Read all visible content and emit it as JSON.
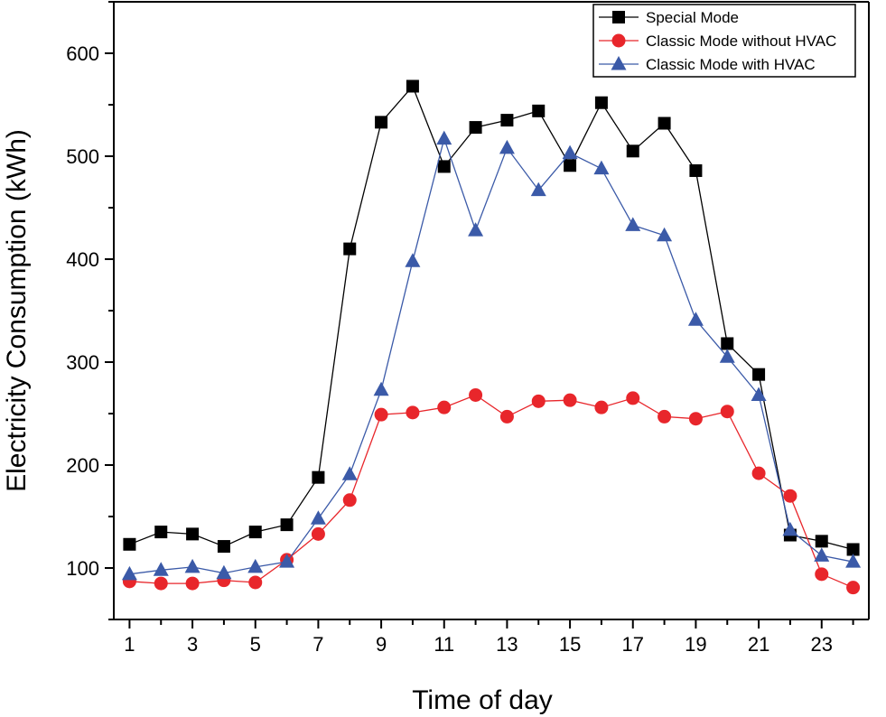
{
  "chart_data": {
    "type": "line",
    "title": "",
    "xlabel": "Time of day",
    "ylabel": "Electricity Consumption (kWh)",
    "xlim": [
      0.5,
      24.5
    ],
    "ylim": [
      50,
      650
    ],
    "x_ticks": [
      1,
      3,
      5,
      7,
      9,
      11,
      13,
      15,
      17,
      19,
      21,
      23
    ],
    "y_ticks": [
      100,
      200,
      300,
      400,
      500,
      600
    ],
    "grid": false,
    "legend_position": "top-right",
    "x": [
      1,
      2,
      3,
      4,
      5,
      6,
      7,
      8,
      9,
      10,
      11,
      12,
      13,
      14,
      15,
      16,
      17,
      18,
      19,
      20,
      21,
      22,
      23,
      24
    ],
    "series": [
      {
        "name": "Special Mode",
        "color": "#000000",
        "marker": "square",
        "values": [
          123,
          135,
          133,
          121,
          135,
          142,
          188,
          410,
          533,
          568,
          490,
          528,
          535,
          544,
          491,
          552,
          505,
          532,
          486,
          318,
          288,
          132,
          126,
          118
        ]
      },
      {
        "name": "Classic Mode without HVAC",
        "color": "#e8262b",
        "marker": "circle",
        "values": [
          87,
          85,
          85,
          88,
          86,
          108,
          133,
          166,
          249,
          251,
          256,
          268,
          247,
          262,
          263,
          256,
          265,
          247,
          245,
          252,
          192,
          170,
          94,
          81
        ]
      },
      {
        "name": "Classic Mode with HVAC",
        "color": "#3b5aa8",
        "marker": "triangle",
        "values": [
          94,
          98,
          101,
          95,
          101,
          106,
          148,
          191,
          273,
          398,
          517,
          428,
          508,
          467,
          503,
          488,
          433,
          423,
          341,
          305,
          268,
          137,
          112,
          106
        ]
      }
    ]
  }
}
